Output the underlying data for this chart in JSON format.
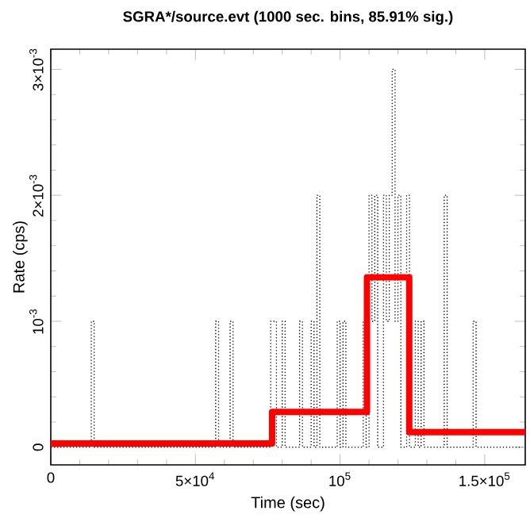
{
  "chart_data": {
    "type": "step",
    "title": "SGRA*/source.evt (1000 sec. bins, 85.91% sig.)",
    "xlabel": "Time (sec)",
    "ylabel": "Rate (cps)",
    "xlim": [
      0,
      164000
    ],
    "ylim": [
      -0.00014,
      0.00316
    ],
    "xticks": [
      0,
      {
        "value": 50000,
        "label": "5×10$^{4}$"
      },
      {
        "value": 100000,
        "label": "10$^{5}$"
      },
      {
        "value": 150000,
        "label": "1.5×10$^{5}$"
      }
    ],
    "yticks": [
      0,
      {
        "value": 0.001,
        "label": "10$^{-3}$"
      },
      {
        "value": 0.002,
        "label": "2×10$^{-3}$"
      },
      {
        "value": 0.003,
        "label": "3×10$^{-3}$"
      }
    ],
    "series": [
      {
        "color": "#000000",
        "line_style": "dotted",
        "x": [
          0,
          14000,
          15000,
          57000,
          58000,
          62000,
          63000,
          76000,
          78000,
          80000,
          81000,
          86000,
          87000,
          90000,
          91000,
          92000,
          93000,
          99000,
          100000,
          101000,
          102000,
          108000,
          109000,
          110000,
          111000,
          112000,
          113000,
          115000,
          116000,
          117000,
          118000,
          119000,
          120000,
          121000,
          123000,
          124000,
          126000,
          127000,
          128000,
          129000,
          136000,
          137000,
          146000,
          147000,
          163000
        ],
        "values": [
          0,
          0.001,
          0,
          0.001,
          0,
          0.001,
          0,
          0.001,
          0,
          0.001,
          0,
          0.001,
          0,
          0.001,
          0,
          0.002,
          0,
          0.001,
          0,
          0.001,
          0,
          0.001,
          0,
          0.002,
          0.001,
          0.002,
          0,
          0.002,
          0.001,
          0.002,
          0.003,
          0.001,
          0.002,
          0,
          0.002,
          0,
          0.001,
          0,
          0.001,
          0,
          0.002,
          0,
          0.001,
          0,
          0
        ]
      },
      {
        "color": "#ff0000",
        "line_style": "solid",
        "x": [
          0,
          76500,
          109300,
          123900,
          164000
        ],
        "values": [
          3e-05,
          0.00028,
          0.00135,
          0.00012,
          0.00012
        ]
      }
    ]
  }
}
